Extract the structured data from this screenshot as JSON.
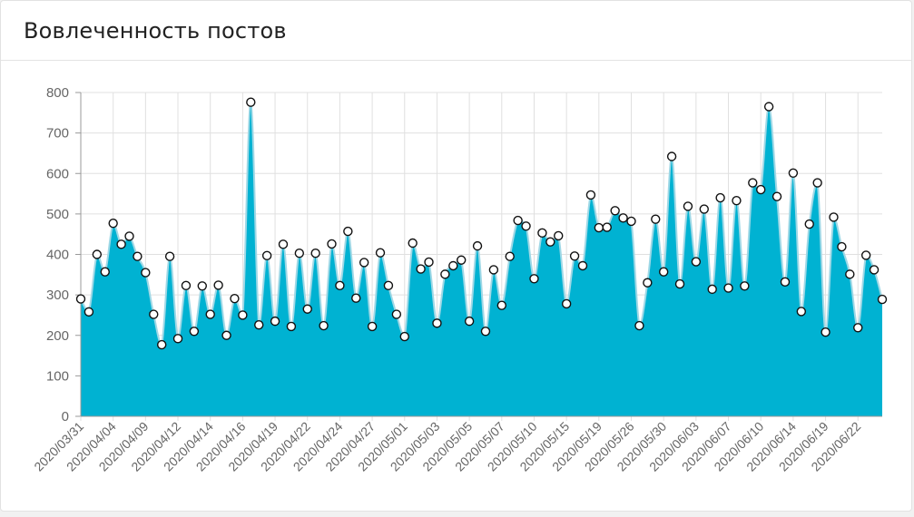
{
  "card": {
    "title": "Вовлеченность постов"
  },
  "colors": {
    "fill": "#00b2d2",
    "stroke": "#9fd8e6",
    "point_fill": "#ffffff",
    "point_stroke": "#111111",
    "grid": "#e0e0e0",
    "tick": "#666666"
  },
  "chart_data": {
    "type": "area",
    "title": "",
    "xlabel": "",
    "ylabel": "",
    "ylim": [
      0,
      800
    ],
    "yticks": [
      0,
      100,
      200,
      300,
      400,
      500,
      600,
      700,
      800
    ],
    "grid": true,
    "tick_labels": [
      "2020/03/31",
      "2020/04/04",
      "2020/04/09",
      "2020/04/12",
      "2020/04/14",
      "2020/04/16",
      "2020/04/19",
      "2020/04/22",
      "2020/04/24",
      "2020/04/27",
      "2020/05/01",
      "2020/05/03",
      "2020/05/05",
      "2020/05/07",
      "2020/05/10",
      "2020/05/15",
      "2020/05/19",
      "2020/05/26",
      "2020/05/30",
      "2020/06/03",
      "2020/06/07",
      "2020/06/10",
      "2020/06/14",
      "2020/06/19",
      "2020/06/22"
    ],
    "tick_indices": [
      0,
      4,
      8,
      12,
      16,
      20,
      24,
      28,
      32,
      36,
      40,
      44,
      48,
      52,
      56,
      60,
      64,
      68,
      72,
      76,
      80,
      84,
      88,
      92,
      96
    ],
    "values": [
      290,
      258,
      400,
      357,
      477,
      425,
      445,
      395,
      355,
      252,
      177,
      395,
      192,
      323,
      210,
      322,
      252,
      324,
      200,
      291,
      250,
      776,
      226,
      397,
      235,
      425,
      222,
      403,
      265,
      403,
      224,
      426,
      323,
      457,
      292,
      380,
      222,
      404,
      323,
      252,
      197,
      428,
      364,
      381,
      230,
      351,
      372,
      386,
      235,
      421,
      210,
      362,
      274,
      395,
      484,
      470,
      340,
      453,
      431,
      446,
      278,
      396,
      372,
      547,
      466,
      467,
      508,
      490,
      482,
      224,
      330,
      487,
      357,
      642,
      327,
      519,
      382,
      512,
      314,
      540,
      317,
      533,
      322,
      577,
      560,
      765,
      543,
      332,
      601,
      259,
      475,
      577,
      208,
      492,
      419,
      351,
      219,
      398,
      362,
      289
    ]
  }
}
